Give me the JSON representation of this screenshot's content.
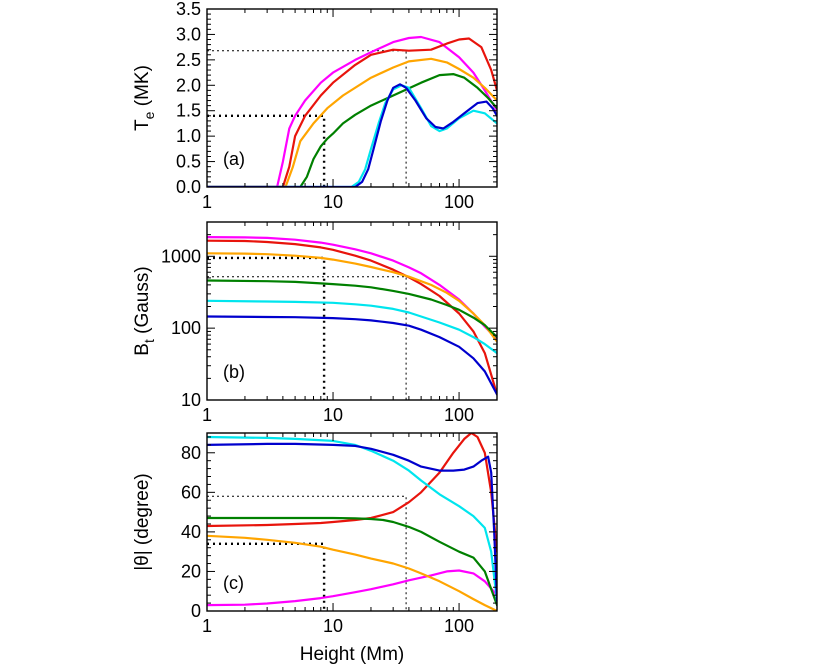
{
  "figure": {
    "xlabel": "Height (Mm)",
    "x_scale": "log",
    "xlim": [
      1,
      200
    ],
    "x_ticks": [
      1,
      10,
      100
    ],
    "x_tick_labels": [
      "1",
      "10",
      "100"
    ]
  },
  "colors": {
    "magenta": "#ff00ff",
    "red": "#e8140c",
    "orange": "#ffa500",
    "green": "#008000",
    "cyan": "#00e5ee",
    "blue": "#0000cd",
    "reference": "#000000"
  },
  "chart_data": [
    {
      "type": "line",
      "panel_label": "(a)",
      "ylabel": "T_e (MK)",
      "ylabel_main": "T",
      "ylabel_sub": "e",
      "ylabel_rest": " (MK)",
      "x_scale": "log",
      "y_scale": "linear",
      "xlim": [
        1,
        200
      ],
      "ylim": [
        0,
        3.5
      ],
      "y_ticks": [
        0.0,
        0.5,
        1.0,
        1.5,
        2.0,
        2.5,
        3.0,
        3.5
      ],
      "y_tick_labels": [
        "0.0",
        "0.5",
        "1.0",
        "1.5",
        "2.0",
        "2.5",
        "3.0",
        "3.5"
      ],
      "series": [
        {
          "name": "magenta",
          "color": "magenta",
          "x": [
            1,
            3.6,
            4.0,
            4.5,
            5,
            6,
            8,
            10,
            15,
            20,
            30,
            40,
            50,
            70,
            100,
            130,
            160,
            200
          ],
          "y": [
            0,
            0,
            0.5,
            1.15,
            1.4,
            1.7,
            2.05,
            2.25,
            2.5,
            2.65,
            2.85,
            2.93,
            2.95,
            2.85,
            2.55,
            2.25,
            1.9,
            1.5
          ]
        },
        {
          "name": "red",
          "color": "red",
          "x": [
            1,
            4.0,
            4.5,
            5,
            6,
            8,
            10,
            15,
            20,
            30,
            40,
            60,
            80,
            100,
            120,
            150,
            180,
            200
          ],
          "y": [
            0,
            0,
            0.4,
            1.0,
            1.4,
            1.8,
            2.05,
            2.4,
            2.6,
            2.7,
            2.68,
            2.7,
            2.82,
            2.9,
            2.92,
            2.75,
            2.3,
            1.9
          ]
        },
        {
          "name": "orange",
          "color": "orange",
          "x": [
            1,
            4.2,
            4.8,
            5.5,
            7,
            9,
            12,
            20,
            30,
            40,
            60,
            80,
            100,
            130,
            160,
            200
          ],
          "y": [
            0,
            0,
            0.4,
            0.9,
            1.25,
            1.55,
            1.8,
            2.15,
            2.35,
            2.47,
            2.52,
            2.45,
            2.32,
            2.15,
            1.95,
            1.7
          ]
        },
        {
          "name": "green",
          "color": "green",
          "x": [
            1,
            5.5,
            6.2,
            7,
            8,
            9,
            10,
            12,
            15,
            20,
            30,
            50,
            70,
            90,
            110,
            140,
            170,
            200
          ],
          "y": [
            0,
            0,
            0.2,
            0.55,
            0.8,
            0.95,
            1.05,
            1.25,
            1.42,
            1.6,
            1.8,
            2.05,
            2.2,
            2.22,
            2.15,
            1.95,
            1.75,
            1.55
          ]
        },
        {
          "name": "cyan",
          "color": "cyan",
          "x": [
            1,
            14,
            16,
            18,
            20,
            23,
            26,
            30,
            35,
            40,
            50,
            60,
            70,
            80,
            100,
            130,
            160,
            200
          ],
          "y": [
            0,
            0,
            0.1,
            0.35,
            0.75,
            1.25,
            1.65,
            1.92,
            2.0,
            1.95,
            1.55,
            1.2,
            1.1,
            1.15,
            1.35,
            1.5,
            1.45,
            1.25
          ]
        },
        {
          "name": "blue",
          "color": "blue",
          "x": [
            1,
            15,
            17,
            19,
            21,
            24,
            27,
            30,
            34,
            38,
            45,
            55,
            65,
            75,
            90,
            110,
            140,
            165,
            185,
            200
          ],
          "y": [
            0,
            0,
            0.1,
            0.35,
            0.75,
            1.3,
            1.7,
            1.95,
            2.02,
            1.95,
            1.7,
            1.35,
            1.18,
            1.15,
            1.28,
            1.45,
            1.65,
            1.68,
            1.55,
            1.4
          ]
        }
      ],
      "reference_lines": [
        {
          "style": "dotted-thick",
          "points": [
            [
              1,
              1.4
            ],
            [
              8.5,
              1.4
            ],
            [
              8.5,
              0
            ]
          ]
        },
        {
          "style": "dotted-thin",
          "points": [
            [
              1,
              2.68
            ],
            [
              38,
              2.68
            ],
            [
              38,
              0
            ]
          ]
        }
      ]
    },
    {
      "type": "line",
      "panel_label": "(b)",
      "ylabel": "B_t (Gauss)",
      "ylabel_main": "B",
      "ylabel_sub": "t",
      "ylabel_rest": " (Gauss)",
      "x_scale": "log",
      "y_scale": "log",
      "xlim": [
        1,
        200
      ],
      "ylim": [
        10,
        3000
      ],
      "y_ticks": [
        10,
        100,
        1000
      ],
      "y_tick_labels": [
        "10",
        "100",
        "1000"
      ],
      "series": [
        {
          "name": "magenta",
          "color": "magenta",
          "x": [
            1,
            2,
            3,
            5,
            8,
            10,
            15,
            20,
            30,
            40,
            50,
            70,
            100,
            130,
            160,
            200
          ],
          "y": [
            1850,
            1830,
            1800,
            1700,
            1550,
            1450,
            1250,
            1100,
            870,
            700,
            580,
            400,
            250,
            160,
            105,
            70
          ]
        },
        {
          "name": "red",
          "color": "red",
          "x": [
            1,
            2,
            3,
            5,
            8,
            10,
            15,
            20,
            30,
            40,
            50,
            70,
            100,
            130,
            160,
            200
          ],
          "y": [
            1650,
            1630,
            1580,
            1480,
            1330,
            1230,
            1020,
            870,
            650,
            510,
            410,
            280,
            160,
            90,
            45,
            12
          ]
        },
        {
          "name": "orange",
          "color": "orange",
          "x": [
            1,
            2,
            3,
            5,
            8,
            10,
            15,
            20,
            30,
            40,
            60,
            80,
            100,
            130,
            160,
            200
          ],
          "y": [
            1100,
            1090,
            1070,
            1020,
            950,
            900,
            790,
            710,
            600,
            520,
            400,
            310,
            240,
            160,
            110,
            65
          ]
        },
        {
          "name": "green",
          "color": "green",
          "x": [
            1,
            3,
            5,
            8,
            10,
            15,
            20,
            30,
            40,
            60,
            80,
            100,
            130,
            160,
            200
          ],
          "y": [
            460,
            450,
            440,
            420,
            410,
            390,
            370,
            330,
            300,
            250,
            210,
            180,
            140,
            110,
            75
          ]
        },
        {
          "name": "cyan",
          "color": "cyan",
          "x": [
            1,
            3,
            5,
            10,
            15,
            20,
            30,
            40,
            50,
            70,
            100,
            130,
            160,
            200
          ],
          "y": [
            240,
            235,
            232,
            225,
            215,
            205,
            185,
            165,
            145,
            120,
            95,
            75,
            60,
            45
          ]
        },
        {
          "name": "blue",
          "color": "blue",
          "x": [
            1,
            3,
            5,
            10,
            15,
            20,
            30,
            40,
            50,
            70,
            100,
            130,
            160,
            200
          ],
          "y": [
            145,
            143,
            142,
            138,
            133,
            128,
            118,
            108,
            95,
            75,
            55,
            38,
            25,
            12
          ]
        }
      ],
      "reference_lines": [
        {
          "style": "dotted-thick",
          "points": [
            [
              1,
              950
            ],
            [
              8.5,
              950
            ],
            [
              8.5,
              10
            ]
          ]
        },
        {
          "style": "dotted-thin",
          "points": [
            [
              1,
              520
            ],
            [
              38,
              520
            ],
            [
              38,
              10
            ]
          ]
        }
      ]
    },
    {
      "type": "line",
      "panel_label": "(c)",
      "ylabel": "|θ| (degree)",
      "ylabel_main": "|θ| (degree)",
      "ylabel_sub": "",
      "ylabel_rest": "",
      "x_scale": "log",
      "y_scale": "linear",
      "xlim": [
        1,
        200
      ],
      "ylim": [
        0,
        90
      ],
      "y_ticks": [
        0,
        20,
        40,
        60,
        80
      ],
      "y_tick_labels": [
        "0",
        "20",
        "40",
        "60",
        "80"
      ],
      "series": [
        {
          "name": "magenta",
          "color": "magenta",
          "x": [
            1,
            2,
            3,
            5,
            8,
            10,
            15,
            20,
            30,
            40,
            60,
            80,
            100,
            130,
            160,
            200
          ],
          "y": [
            3,
            3.2,
            3.8,
            5,
            6.5,
            7.5,
            9.5,
            11,
            13.5,
            15.5,
            18,
            20,
            20.5,
            19,
            15,
            8
          ]
        },
        {
          "name": "red",
          "color": "red",
          "x": [
            1,
            3,
            5,
            8,
            10,
            15,
            20,
            30,
            40,
            50,
            70,
            90,
            110,
            125,
            140,
            160,
            180,
            200
          ],
          "y": [
            43,
            43.5,
            44,
            44.5,
            45,
            46,
            47,
            50,
            55,
            60,
            70,
            80,
            87,
            90,
            88,
            80,
            60,
            30
          ]
        },
        {
          "name": "orange",
          "color": "orange",
          "x": [
            1,
            2,
            3,
            5,
            8,
            10,
            15,
            20,
            30,
            40,
            50,
            70,
            100,
            130,
            160,
            200
          ],
          "y": [
            38,
            37,
            36,
            34.5,
            32.5,
            31,
            28.5,
            26.5,
            24,
            21.5,
            19,
            15,
            10,
            6,
            3,
            0
          ]
        },
        {
          "name": "green",
          "color": "green",
          "x": [
            1,
            3,
            5,
            10,
            15,
            20,
            25,
            30,
            40,
            50,
            70,
            100,
            130,
            160,
            200
          ],
          "y": [
            47,
            47,
            47,
            47,
            46.8,
            46.5,
            46,
            45,
            42.5,
            40,
            35,
            30,
            27,
            20,
            3
          ]
        },
        {
          "name": "cyan",
          "color": "cyan",
          "x": [
            1,
            3,
            5,
            10,
            15,
            20,
            30,
            40,
            50,
            70,
            100,
            130,
            160,
            180,
            200
          ],
          "y": [
            88,
            87.5,
            87,
            86,
            84,
            81,
            76,
            71,
            66,
            59,
            53,
            48,
            42,
            30,
            5
          ]
        },
        {
          "name": "blue",
          "color": "blue",
          "x": [
            1,
            3,
            5,
            10,
            15,
            20,
            30,
            40,
            50,
            70,
            90,
            110,
            130,
            150,
            170,
            180,
            190,
            200
          ],
          "y": [
            84,
            84.5,
            84.5,
            84,
            83.5,
            82,
            79,
            76,
            73,
            71,
            71,
            71.5,
            73,
            76,
            78,
            70,
            40,
            5
          ]
        }
      ],
      "reference_lines": [
        {
          "style": "dotted-thick",
          "points": [
            [
              1,
              34
            ],
            [
              8.5,
              34
            ],
            [
              8.5,
              0
            ]
          ]
        },
        {
          "style": "dotted-thin",
          "points": [
            [
              1,
              58
            ],
            [
              38,
              58
            ],
            [
              38,
              0
            ]
          ]
        }
      ]
    }
  ]
}
